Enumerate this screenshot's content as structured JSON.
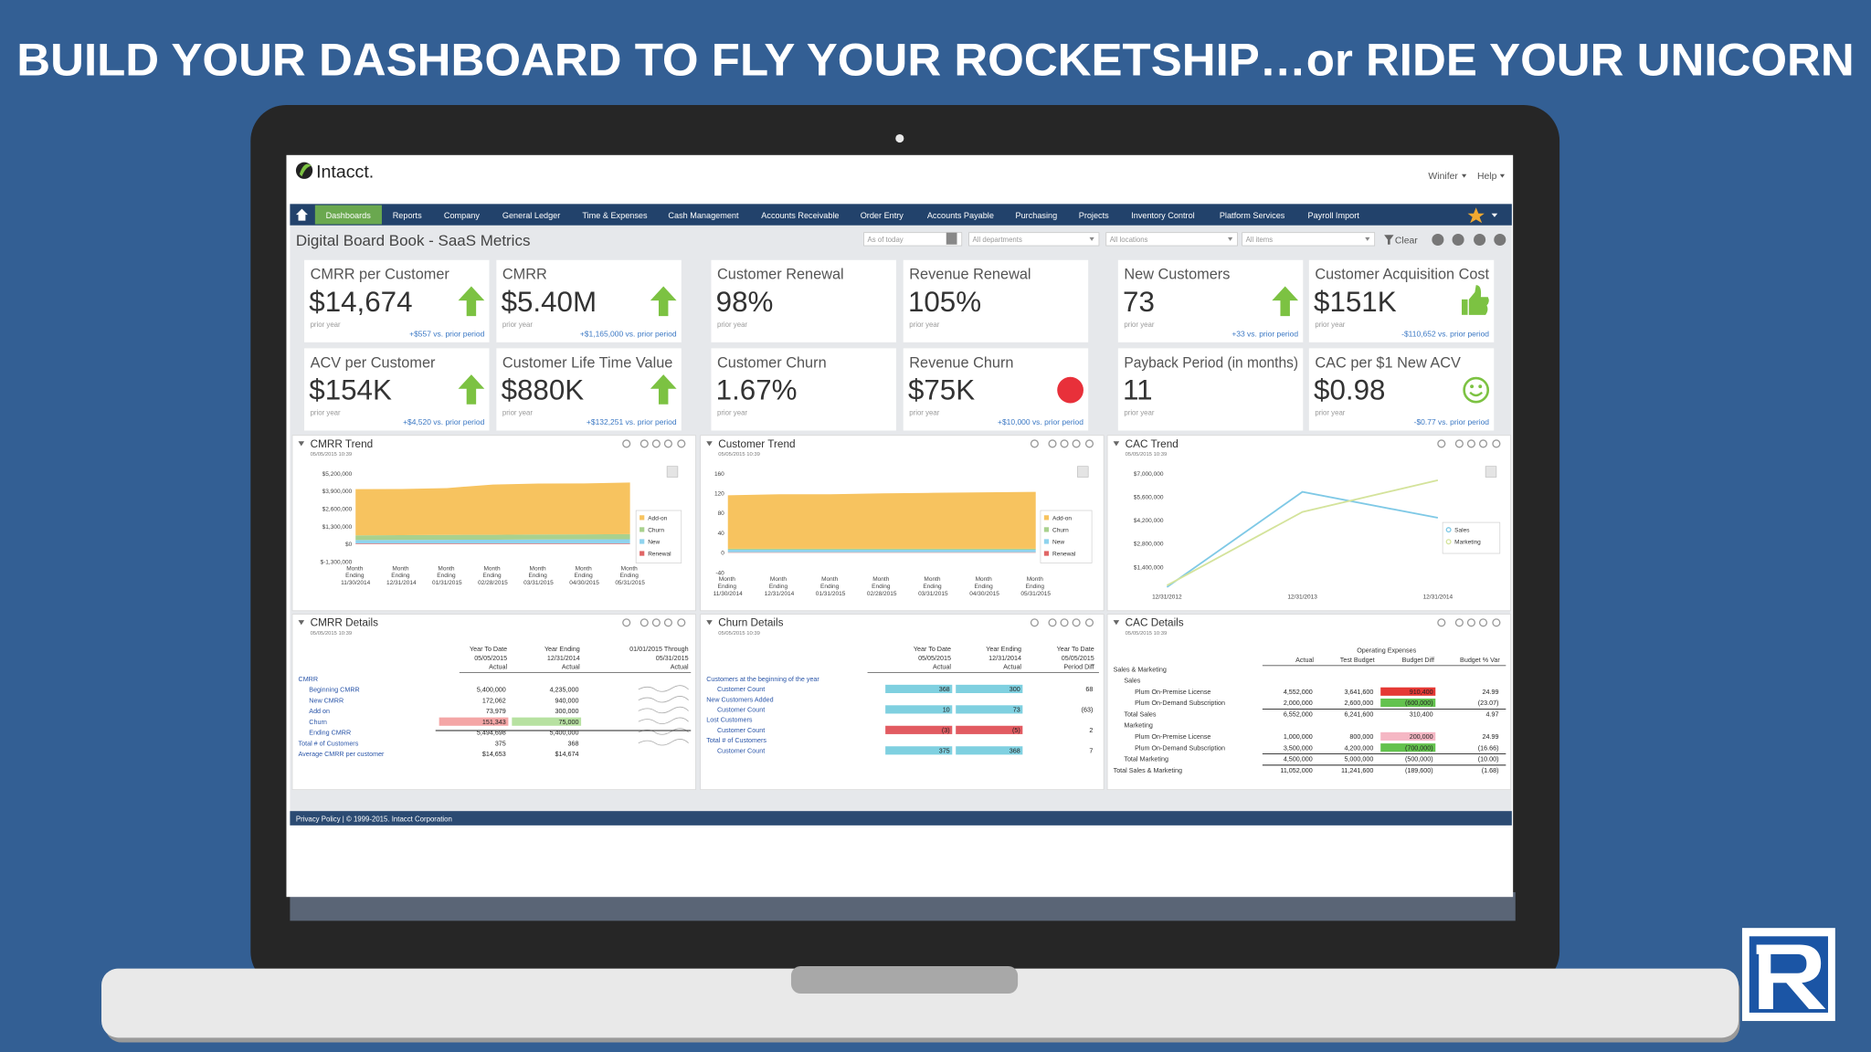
{
  "title": "BUILD YOUR DASHBOARD TO FLY YOUR ROCKETSHIP…or RIDE YOUR UNICORN",
  "app": {
    "logo": "Intacct.",
    "user_menu": "Winifer",
    "help": "Help",
    "nav": [
      "Dashboards",
      "Reports",
      "Company",
      "General Ledger",
      "Time & Expenses",
      "Cash Management",
      "Accounts Receivable",
      "Order Entry",
      "Accounts Payable",
      "Purchasing",
      "Projects",
      "Inventory Control",
      "Platform Services",
      "Payroll Import"
    ],
    "page_title": "Digital Board Book - SaaS Metrics",
    "filters": [
      "As of today",
      "All departments",
      "All locations",
      "All items"
    ],
    "clear": "Clear",
    "footer": "Privacy Policy | © 1999-2015. Intacct Corporation"
  },
  "kpis": [
    {
      "label": "CMRR per Customer",
      "value": "$14,674",
      "period": "prior year",
      "change": "+$557 vs. prior period"
    },
    {
      "label": "CMRR",
      "value": "$5.40M",
      "period": "prior year",
      "change": "+$1,165,000 vs. prior period"
    },
    {
      "label": "Customer Renewal",
      "value": "98%",
      "period": "prior year"
    },
    {
      "label": "Revenue Renewal",
      "value": "105%",
      "period": "prior year"
    },
    {
      "label": "New Customers",
      "value": "73",
      "period": "prior year",
      "change": "+33 vs. prior period"
    },
    {
      "label": "Customer Acquisition Cost",
      "value": "$151K",
      "period": "prior year",
      "change": "-$110,652 vs. prior period"
    },
    {
      "label": "ACV per Customer",
      "value": "$154K",
      "period": "prior year",
      "change": "+$4,520 vs. prior period"
    },
    {
      "label": "Customer Life Time Value",
      "value": "$880K",
      "period": "prior year",
      "change": "+$132,251 vs. prior period"
    },
    {
      "label": "Customer Churn",
      "value": "1.67%",
      "period": "prior year"
    },
    {
      "label": "Revenue Churn",
      "value": "$75K",
      "period": "prior year",
      "change": "+$10,000 vs. prior period"
    },
    {
      "label": "Payback Period (in months)",
      "value": "11",
      "period": "prior year"
    },
    {
      "label": "CAC per $1 New ACV",
      "value": "$0.98",
      "period": "prior year",
      "change": "-$0.77 vs. prior period"
    }
  ],
  "chart_data": [
    {
      "type": "area",
      "title": "CMRR Trend",
      "timestamp": "05/05/2015 10:39",
      "categories": [
        "Month Ending 11/30/2014",
        "Month Ending 12/31/2014",
        "Month Ending 01/31/2015",
        "Month Ending 02/28/2015",
        "Month Ending 03/31/2015",
        "Month Ending 04/30/2015",
        "Month Ending 05/31/2015"
      ],
      "series": [
        {
          "name": "Add-on",
          "color": "#f7c35f",
          "values": [
            3400000,
            3400000,
            3450000,
            3700000,
            3750000,
            3750000,
            3800000
          ]
        },
        {
          "name": "Churn",
          "color": "#a9d18e",
          "values": [
            350000,
            350000,
            360000,
            360000,
            370000,
            370000,
            380000
          ]
        },
        {
          "name": "New",
          "color": "#8fd3ee",
          "values": [
            250000,
            260000,
            270000,
            280000,
            290000,
            300000,
            310000
          ]
        },
        {
          "name": "Renewal",
          "color": "#e06666",
          "values": [
            50000,
            50000,
            50000,
            50000,
            50000,
            50000,
            50000
          ]
        }
      ],
      "ylim": [
        -1300000,
        5200000
      ],
      "yticks": [
        {
          "value": 5200000,
          "label": "$5,200,000"
        },
        {
          "value": 3900000,
          "label": "$3,900,000"
        },
        {
          "value": 2600000,
          "label": "$2,600,000"
        },
        {
          "value": 1300000,
          "label": "$1,300,000"
        },
        {
          "value": 0,
          "label": "$0"
        },
        {
          "value": -1300000,
          "label": "$-1,300,000"
        }
      ],
      "legend": "right"
    },
    {
      "type": "area",
      "title": "Customer Trend",
      "timestamp": "05/05/2015 10:39",
      "categories": [
        "Month Ending 11/30/2014",
        "Month Ending 12/31/2014",
        "Month Ending 01/31/2015",
        "Month Ending 02/28/2015",
        "Month Ending 03/31/2015",
        "Month Ending 04/30/2015",
        "Month Ending 05/31/2015"
      ],
      "series": [
        {
          "name": "Add-on",
          "color": "#f7c35f",
          "values": [
            108,
            110,
            110,
            112,
            113,
            114,
            115
          ]
        },
        {
          "name": "Churn",
          "color": "#a9d18e",
          "values": [
            2,
            2,
            2,
            2,
            2,
            2,
            2
          ]
        },
        {
          "name": "New",
          "color": "#8fd3ee",
          "values": [
            5,
            5,
            5,
            5,
            5,
            5,
            5
          ]
        },
        {
          "name": "Renewal",
          "color": "#e06666",
          "values": [
            1,
            1,
            1,
            1,
            1,
            1,
            1
          ]
        }
      ],
      "ylim": [
        -40,
        160
      ],
      "yticks": [
        160,
        120,
        80,
        40,
        0,
        -40
      ],
      "legend": "right"
    },
    {
      "type": "line",
      "title": "CAC Trend",
      "timestamp": "05/05/2015 10:39",
      "categories": [
        "12/31/2012",
        "12/31/2013",
        "12/31/2014"
      ],
      "series": [
        {
          "name": "Sales",
          "color": "#7fc9e6",
          "values": [
            200000,
            5900000,
            4350000
          ]
        },
        {
          "name": "Marketing",
          "color": "#d4e39b",
          "values": [
            300000,
            4700000,
            6600000
          ]
        }
      ],
      "ylim": [
        0,
        7000000
      ],
      "yticks": [
        {
          "value": 7000000,
          "label": "$7,000,000"
        },
        {
          "value": 5600000,
          "label": "$5,600,000"
        },
        {
          "value": 4200000,
          "label": "$4,200,000"
        },
        {
          "value": 2800000,
          "label": "$2,800,000"
        },
        {
          "value": 1400000,
          "label": "$1,400,000"
        }
      ],
      "legend": "right"
    }
  ],
  "details": [
    {
      "title": "CMRR Details",
      "timestamp": "05/05/2015 10:39",
      "columns": [
        [
          "Year To Date",
          "05/05/2015",
          "Actual"
        ],
        [
          "Year Ending",
          "12/31/2014",
          "Actual"
        ],
        [
          "01/01/2015 Through",
          "05/31/2015",
          "Actual"
        ]
      ],
      "rows": [
        {
          "label": "CMRR"
        },
        {
          "label": "Beginning CMRR",
          "cells": [
            "5,400,000",
            "4,235,000"
          ]
        },
        {
          "label": "New CMRR",
          "cells": [
            "172,062",
            "940,000"
          ]
        },
        {
          "label": "Add on",
          "cells": [
            "73,979",
            "300,000"
          ]
        },
        {
          "label": "Churn",
          "cells": [
            "151,343",
            "75,000"
          ]
        },
        {
          "label": "Ending CMRR",
          "cells": [
            "5,494,698",
            "5,400,000"
          ]
        },
        {
          "label": "Total # of Customers",
          "cells": [
            "375",
            "368"
          ]
        },
        {
          "label": "Average CMRR per customer",
          "cells": [
            "$14,653",
            "$14,674"
          ]
        }
      ]
    },
    {
      "title": "Churn Details",
      "timestamp": "05/05/2015 10:39",
      "columns": [
        [
          "Year To Date",
          "05/05/2015",
          "Actual"
        ],
        [
          "Year Ending",
          "12/31/2014",
          "Actual"
        ],
        [
          "Year To Date",
          "05/05/2015",
          "Period Diff"
        ]
      ],
      "rows": [
        {
          "label": "Customers at the beginning of the year"
        },
        {
          "label": "Customer Count",
          "cells": [
            "368",
            "300",
            "68"
          ]
        },
        {
          "label": "New Customers Added"
        },
        {
          "label": "Customer Count",
          "cells": [
            "10",
            "73",
            "(63)"
          ]
        },
        {
          "label": "Lost Customers"
        },
        {
          "label": "Customer Count",
          "cells": [
            "(3)",
            "(5)",
            "2"
          ]
        },
        {
          "label": "Total # of Customers"
        },
        {
          "label": "Customer Count",
          "cells": [
            "375",
            "368",
            "7"
          ]
        }
      ]
    },
    {
      "title": "CAC Details",
      "timestamp": "05/05/2015 10:39",
      "group_header": "Operating Expenses",
      "columns": [
        [
          "Actual"
        ],
        [
          "Test Budget"
        ],
        [
          "Budget Diff"
        ],
        [
          "Budget % Var"
        ]
      ],
      "rows": [
        {
          "label": "Sales & Marketing"
        },
        {
          "label": "Sales"
        },
        {
          "label": "Plum On-Premise License",
          "cells": [
            "4,552,000",
            "3,641,600",
            "910,400",
            "24.99"
          ]
        },
        {
          "label": "Plum On-Demand Subscription",
          "cells": [
            "2,000,000",
            "2,600,000",
            "(600,000)",
            "(23.07)"
          ]
        },
        {
          "label": "Total Sales",
          "cells": [
            "6,552,000",
            "6,241,600",
            "310,400",
            "4.97"
          ]
        },
        {
          "label": "Marketing"
        },
        {
          "label": "Plum On-Premise License",
          "cells": [
            "1,000,000",
            "800,000",
            "200,000",
            "24.99"
          ]
        },
        {
          "label": "Plum On-Demand Subscription",
          "cells": [
            "3,500,000",
            "4,200,000",
            "(700,000)",
            "(16.66)"
          ]
        },
        {
          "label": "Total Marketing",
          "cells": [
            "4,500,000",
            "5,000,000",
            "(500,000)",
            "(10.00)"
          ]
        },
        {
          "label": "Total Sales & Marketing",
          "cells": [
            "11,052,000",
            "11,241,600",
            "(189,600)",
            "(1.68)"
          ]
        }
      ]
    }
  ]
}
